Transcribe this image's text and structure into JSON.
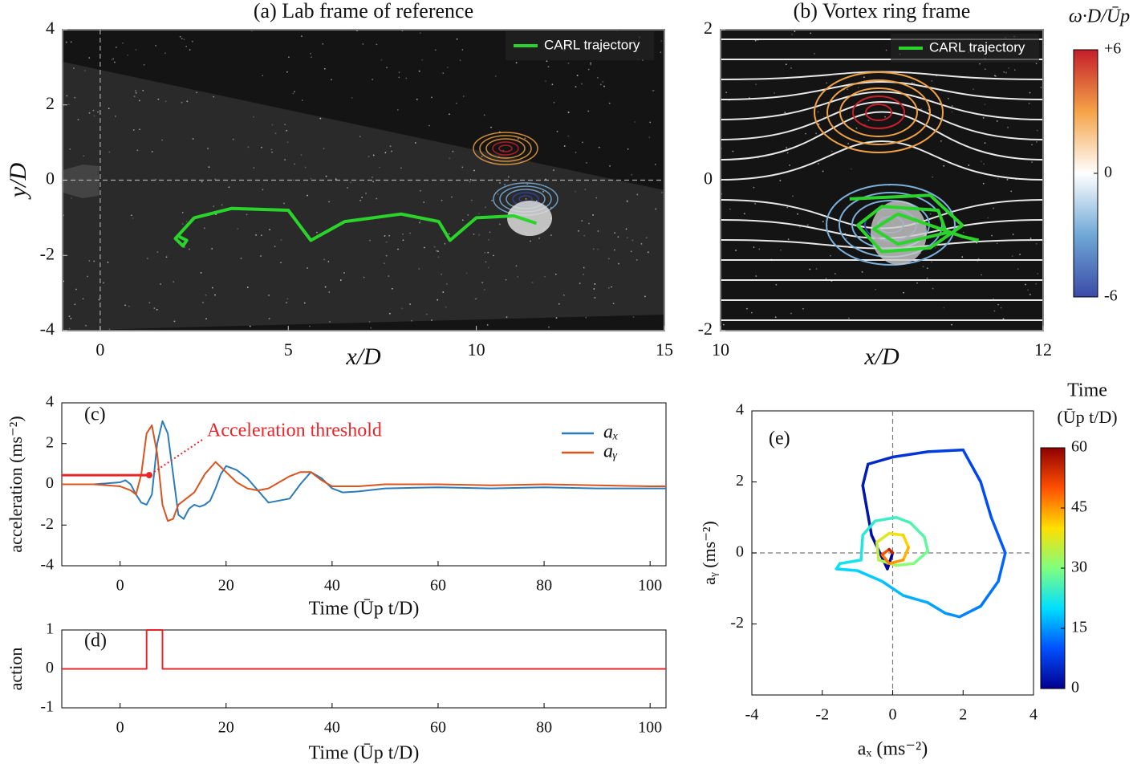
{
  "chart_data": [
    {
      "type": "trajectory",
      "title": "(a) Lab frame of reference",
      "xlabel": "x/D",
      "ylabel": "y/D",
      "xlim": [
        -1,
        15
      ],
      "ylim": [
        -4,
        4
      ],
      "xticks": [
        0,
        5,
        10,
        15
      ],
      "yticks": [
        -4,
        -2,
        0,
        2,
        4
      ],
      "zero_lines": true,
      "series": [
        {
          "name": "CARL trajectory",
          "color": "#2ad42a",
          "x": [
            2.1,
            2.3,
            2.2,
            2.0,
            2.5,
            3.5,
            5.0,
            5.6,
            6.5,
            8.0,
            9.0,
            9.3,
            10.0,
            11.0,
            11.6
          ],
          "values": [
            -1.5,
            -1.6,
            -1.75,
            -1.55,
            -1.0,
            -0.75,
            -0.8,
            -1.6,
            -1.1,
            -0.9,
            -1.1,
            -1.6,
            -1.0,
            -0.95,
            -1.15
          ]
        }
      ]
    },
    {
      "type": "trajectory",
      "title": "(b) Vortex ring frame",
      "xlabel": "x/D",
      "xlim": [
        10,
        12
      ],
      "ylim": [
        -2,
        2
      ],
      "xticks": [
        10,
        12
      ],
      "yticks": [
        -2,
        0,
        2
      ],
      "series": [
        {
          "name": "CARL trajectory",
          "color": "#2ad42a",
          "x": [
            10.8,
            11.3,
            11.5,
            11.3,
            11.0,
            10.85,
            11.0,
            11.35,
            11.4,
            11.1,
            10.95,
            11.1,
            11.5,
            11.6
          ],
          "values": [
            -0.25,
            -0.2,
            -0.6,
            -0.9,
            -0.95,
            -0.6,
            -0.35,
            -0.4,
            -0.7,
            -0.85,
            -0.65,
            -0.45,
            -0.75,
            -0.8
          ]
        }
      ],
      "colorbar": {
        "title": "ω·D/Ūp",
        "lim": [
          -6,
          6
        ],
        "ticks": [
          -6,
          0,
          {
            "value": 6,
            "label": "+6"
          }
        ],
        "colors": [
          "#3b4ba8",
          "#6fa8d6",
          "#ffffff",
          "#f5a347",
          "#c41e2a"
        ]
      }
    },
    {
      "type": "line",
      "label": "(c)",
      "xlabel": "Time (Ūp t/D)",
      "ylabel": "acceleration (ms⁻²)",
      "xlim": [
        -11,
        103
      ],
      "ylim": [
        -4,
        4
      ],
      "xticks": [
        0,
        20,
        40,
        60,
        80,
        100
      ],
      "yticks": [
        -4,
        -2,
        0,
        2,
        4
      ],
      "threshold": {
        "label": "Acceleration threshold",
        "value": 0.45,
        "x": 5.5,
        "color": "#e8262a"
      },
      "series": [
        {
          "name": "aₓ",
          "color": "#2b7bba",
          "x": [
            -11,
            -5,
            0,
            1,
            2,
            3,
            4,
            5,
            6,
            7,
            8,
            9,
            10,
            11,
            12,
            13,
            14,
            15,
            16,
            17,
            18,
            19,
            20,
            22,
            24,
            26,
            28,
            30,
            32,
            34,
            36,
            38,
            40,
            42,
            45,
            50,
            60,
            70,
            80,
            90,
            100,
            103
          ],
          "values": [
            0,
            0,
            0.1,
            0.2,
            0,
            -0.5,
            -0.9,
            -1.0,
            -0.5,
            2.0,
            3.1,
            2.5,
            0.5,
            -1.5,
            -1.7,
            -1.2,
            -1.0,
            -1.1,
            -1.0,
            -0.8,
            -0.2,
            0.5,
            0.9,
            0.7,
            0.3,
            -0.3,
            -0.9,
            -0.8,
            -0.7,
            0.0,
            0.6,
            0.3,
            -0.2,
            -0.4,
            -0.35,
            -0.2,
            -0.15,
            -0.2,
            -0.15,
            -0.2,
            -0.2,
            -0.2
          ]
        },
        {
          "name": "aᵧ",
          "color": "#d9541e",
          "x": [
            -11,
            -5,
            0,
            2,
            3,
            4,
            5,
            6,
            7,
            8,
            9,
            10,
            11,
            12,
            14,
            16,
            18,
            20,
            22,
            24,
            26,
            28,
            30,
            32,
            34,
            36,
            38,
            40,
            45,
            50,
            60,
            70,
            80,
            90,
            100,
            103
          ],
          "values": [
            0,
            0,
            -0.1,
            -0.3,
            -0.5,
            0.5,
            2.5,
            2.9,
            1.5,
            -1.0,
            -1.8,
            -1.7,
            -1.0,
            -0.8,
            -0.4,
            0.5,
            1.1,
            0.6,
            0.1,
            -0.2,
            -0.3,
            -0.2,
            0.1,
            0.4,
            0.6,
            0.6,
            0.2,
            -0.1,
            -0.1,
            0.0,
            0.0,
            -0.05,
            0.0,
            -0.05,
            -0.1,
            -0.1
          ]
        }
      ]
    },
    {
      "type": "line",
      "label": "(d)",
      "xlabel": "Time (Ūp t/D)",
      "ylabel": "action",
      "xlim": [
        -11,
        103
      ],
      "ylim": [
        -1,
        1
      ],
      "xticks": [
        0,
        20,
        40,
        60,
        80,
        100
      ],
      "yticks": [
        -1,
        0,
        1
      ],
      "series": [
        {
          "color": "#e8262a",
          "x": [
            -11,
            5,
            5,
            8,
            8,
            103
          ],
          "values": [
            0,
            0,
            1,
            1,
            0,
            0
          ]
        }
      ]
    },
    {
      "type": "colored_line",
      "label": "(e)",
      "xlabel": "aₓ (ms⁻²)",
      "ylabel": "aᵧ (ms⁻²)",
      "xlim": [
        -4,
        4
      ],
      "ylim": [
        -4,
        4
      ],
      "xticks": [
        -4,
        -2,
        0,
        2,
        4
      ],
      "yticks": [
        -2,
        0,
        2,
        4
      ],
      "zero_lines": true,
      "series": [
        {
          "x": [
            0,
            -0.15,
            -0.6,
            -0.85,
            -0.7,
            0,
            1.0,
            2.0,
            2.5,
            2.8,
            3.2,
            3.0,
            2.5,
            1.9,
            1.5,
            1.0,
            0.3,
            -0.3,
            -1.0,
            -1.6,
            -1.5,
            -0.9,
            -0.85,
            -0.5,
            0.1,
            0.5,
            0.9,
            1.0,
            0.6,
            0.1,
            -0.4,
            -0.45,
            -0.1,
            0.3,
            0.45,
            0.3,
            -0.1,
            -0.3,
            -0.1,
            0
          ],
          "values": [
            0,
            -0.45,
            0.5,
            1.9,
            2.5,
            2.7,
            2.85,
            2.9,
            2.0,
            1.0,
            0.0,
            -0.8,
            -1.5,
            -1.8,
            -1.7,
            -1.4,
            -1.2,
            -0.8,
            -0.5,
            -0.45,
            -0.3,
            -0.2,
            0.5,
            0.9,
            1.0,
            0.85,
            0.45,
            0.05,
            -0.3,
            -0.35,
            -0.2,
            0.3,
            0.55,
            0.5,
            0.15,
            -0.2,
            -0.3,
            -0.05,
            0.1,
            0
          ],
          "t": [
            0,
            1,
            2,
            3,
            4,
            6,
            7,
            8,
            9,
            10,
            11,
            12,
            13,
            14,
            15,
            16,
            17,
            18,
            19,
            20,
            21,
            22,
            23,
            24,
            25,
            26,
            27,
            28,
            30,
            32,
            34,
            36,
            38,
            40,
            42,
            44,
            46,
            48,
            52,
            60
          ]
        }
      ],
      "colorbar": {
        "title": "Time",
        "subtitle": "(Ūp t/D)",
        "lim": [
          0,
          60
        ],
        "ticks": [
          0,
          15,
          30,
          45,
          60
        ],
        "colors": [
          "#00008f",
          "#0050ff",
          "#00dfff",
          "#7fff7f",
          "#ffdf00",
          "#ff5000",
          "#8f0000"
        ]
      }
    }
  ]
}
